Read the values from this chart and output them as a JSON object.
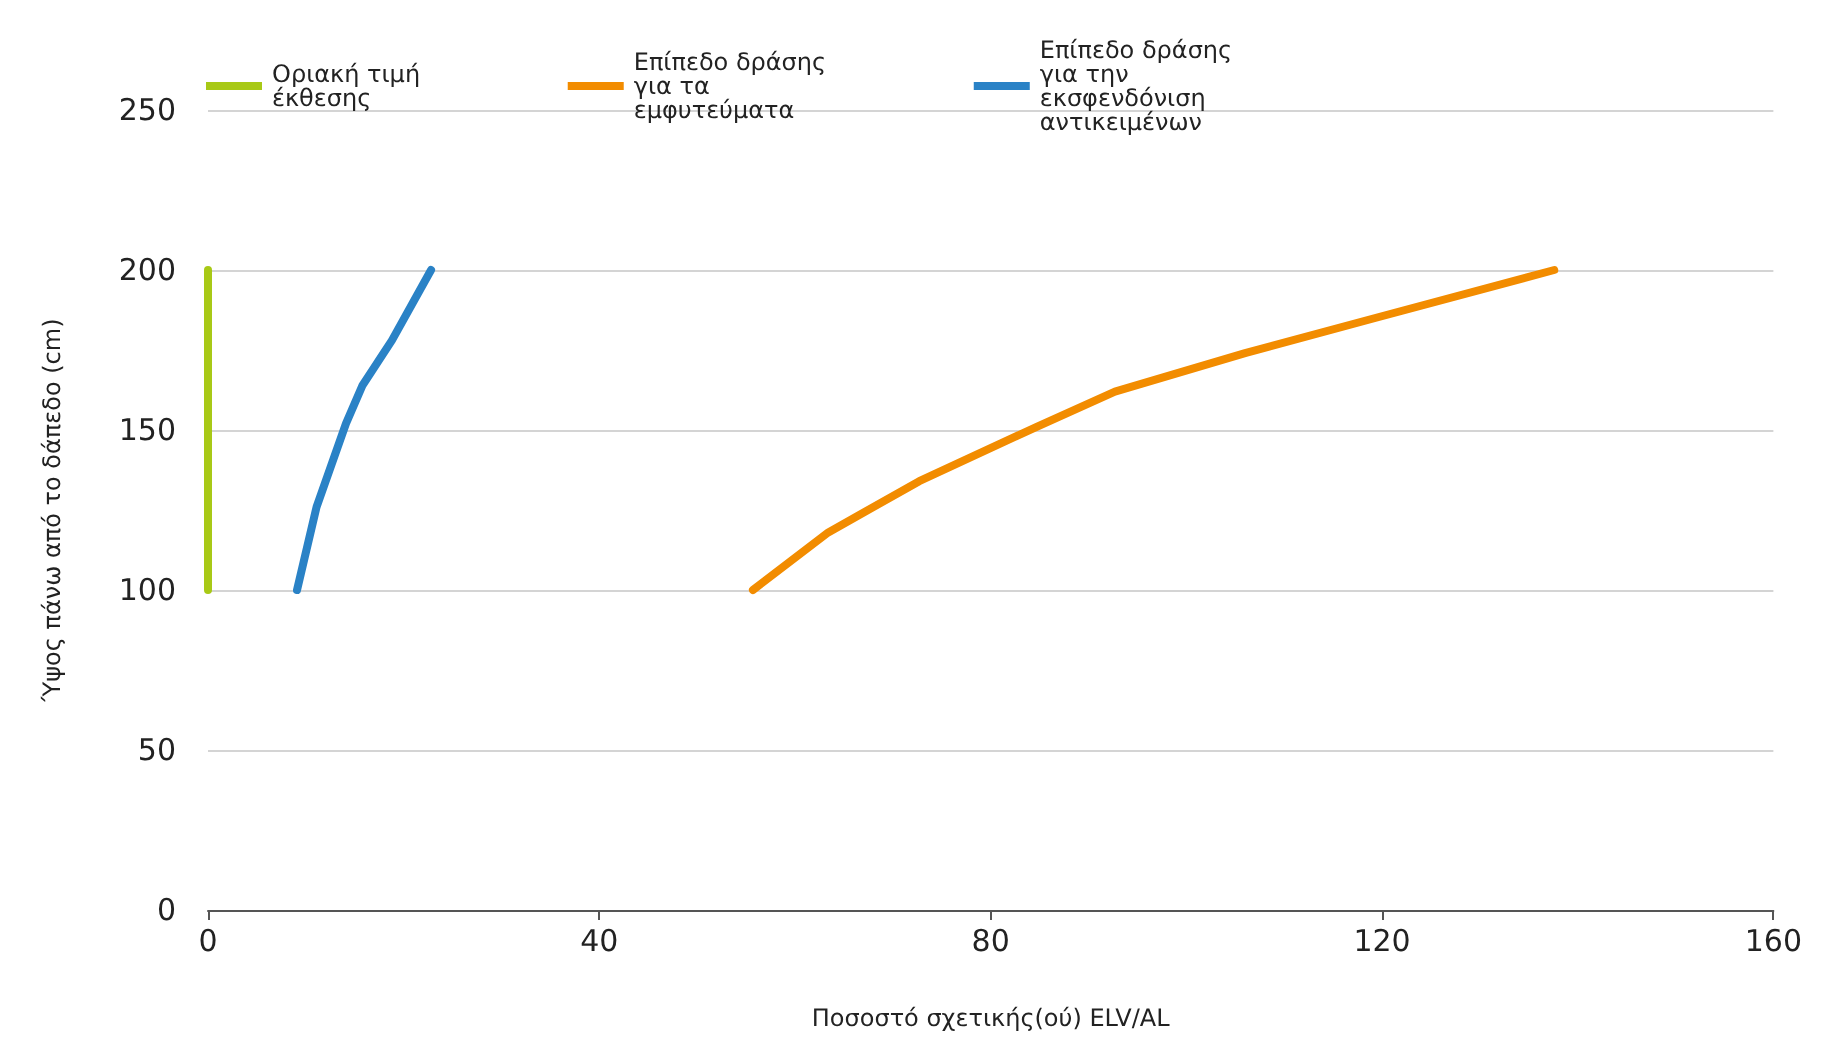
{
  "chart_data": {
    "type": "line",
    "xlabel": "Ποσοστό σχετικής(ού) ELV/AL",
    "ylabel": "Ύψος πάνω από το δάπεδο (cm)",
    "xlim": [
      0,
      160
    ],
    "xticks": [
      0,
      40,
      80,
      120,
      160
    ],
    "ylim": [
      0,
      250
    ],
    "yticks": [
      0,
      50,
      100,
      150,
      200,
      250
    ],
    "grid": "y",
    "legend": "top",
    "marker": "none",
    "line_style": "solid",
    "series": [
      {
        "name": "Οριακή τιμή έκθεσης",
        "color": "#a8c916",
        "x": [
          0,
          0
        ],
        "values": [
          100,
          200
        ]
      },
      {
        "name": "Επίπεδο δράσης για τα εμφυτεύματα",
        "color": "#f28c00",
        "x": [
          55.7,
          63.4,
          72.7,
          84.7,
          92.7,
          106,
          119.3,
          137.6
        ],
        "values": [
          100,
          118,
          134,
          151,
          162,
          174,
          185,
          200
        ]
      },
      {
        "name": "Επίπεδο δράσης για την εκσφενδόνιση αντικειμένων",
        "color": "#2a82c6",
        "x": [
          9.1,
          11.1,
          14.1,
          15.8,
          18.8,
          22.8
        ],
        "values": [
          100,
          126,
          152,
          164,
          178,
          200
        ]
      }
    ]
  }
}
